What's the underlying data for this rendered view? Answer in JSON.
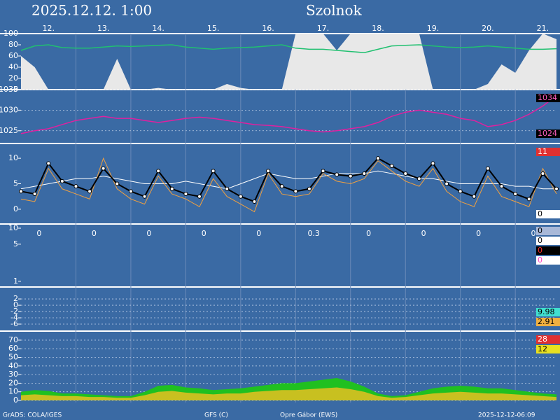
{
  "title": "2025.12.12.  1:00",
  "location": "Szolnok",
  "footer": [
    "GrADS: COLA/IGES",
    "GFS (C)",
    "Opre Gábor (EWS)",
    "2025-12-12-06:09"
  ],
  "chart_data": [
    {
      "type": "area",
      "ylim": [
        0,
        100
      ],
      "yticks": [
        0,
        20,
        40,
        60,
        80,
        100
      ],
      "grid": false,
      "categories": [
        null,
        null,
        "12.",
        null,
        null,
        null,
        "13.",
        null,
        null,
        null,
        "14.",
        null,
        null,
        null,
        "15.",
        null,
        null,
        null,
        "16.",
        null,
        null,
        null,
        "17.",
        null,
        null,
        null,
        "18.",
        null,
        null,
        null,
        "19.",
        null,
        null,
        null,
        "20.",
        null,
        null,
        null,
        "21.",
        null
      ],
      "series": [
        {
          "style": "area",
          "color": "#e8e8e8",
          "values": [
            60,
            40,
            0,
            0,
            0,
            0,
            0,
            55,
            0,
            0,
            3,
            0,
            0,
            0,
            0,
            10,
            3,
            0,
            0,
            0,
            100,
            100,
            100,
            70,
            100,
            100,
            100,
            100,
            100,
            100,
            0,
            0,
            0,
            0,
            10,
            45,
            30,
            70,
            100,
            90
          ]
        },
        {
          "style": "line",
          "color": "#20c070",
          "values": [
            70,
            78,
            80,
            75,
            74,
            74,
            76,
            78,
            77,
            78,
            79,
            80,
            76,
            74,
            72,
            74,
            75,
            76,
            78,
            80,
            74,
            72,
            72,
            70,
            68,
            66,
            72,
            78,
            79,
            80,
            78,
            76,
            75,
            76,
            78,
            76,
            74,
            72,
            72,
            73
          ]
        }
      ]
    },
    {
      "type": "line",
      "ylim": [
        1021.9,
        1035
      ],
      "yticks": [
        1025,
        1030,
        1035
      ],
      "grid": true,
      "series": [
        {
          "style": "line",
          "color": "#e020a0",
          "values": [
            1024.3,
            1025,
            1025.5,
            1026.5,
            1027.5,
            1028,
            1028.5,
            1028,
            1028,
            1027.5,
            1027,
            1027.5,
            1028,
            1028.3,
            1028,
            1027.5,
            1027,
            1026.5,
            1026.3,
            1026,
            1025.5,
            1025,
            1024.7,
            1025,
            1025.5,
            1026,
            1027,
            1028.5,
            1029.5,
            1030,
            1029.5,
            1029,
            1028,
            1027.5,
            1026,
            1026.5,
            1027.5,
            1029,
            1031,
            1033.5
          ]
        }
      ],
      "side_labels": [
        {
          "value": 1034,
          "color": "#ff60c0",
          "background": "#000000"
        },
        {
          "value": 1024,
          "color": "#ff60c0",
          "background": "#000000"
        }
      ]
    },
    {
      "type": "line",
      "ylim": [
        -2.9,
        12.9
      ],
      "yticks": [
        0,
        5,
        10
      ],
      "grid": false,
      "series": [
        {
          "style": "line",
          "color": "#ffffff",
          "width": 1,
          "values": [
            4,
            4.5,
            5,
            5.5,
            6,
            6,
            6.5,
            6,
            5.5,
            5,
            5,
            5,
            5.5,
            5,
            4.5,
            4,
            5,
            6,
            7,
            6.5,
            6,
            6,
            6.5,
            7,
            7,
            7,
            7.5,
            7,
            6.5,
            6,
            6,
            5.5,
            5,
            5,
            5,
            5,
            4.5,
            4.5,
            4,
            4
          ]
        },
        {
          "style": "line",
          "color": "#f0a040",
          "width": 1,
          "values": [
            2,
            1.5,
            8,
            4,
            3,
            2,
            10,
            4,
            2,
            1,
            6.5,
            3,
            2,
            0.5,
            6,
            2.5,
            1,
            -0.5,
            7,
            3,
            2.5,
            3,
            7,
            5.5,
            5,
            6,
            9.5,
            7.5,
            5.5,
            4.5,
            8,
            3.5,
            1.5,
            0.5,
            6.5,
            2.5,
            1.5,
            0.5,
            8,
            3
          ]
        },
        {
          "style": "line",
          "color": "#000000",
          "width": 2,
          "markers": true,
          "values": [
            3.5,
            3,
            9,
            5.5,
            4.5,
            3.5,
            8,
            5,
            3.5,
            2.5,
            7.5,
            4,
            3,
            2.5,
            7.5,
            4,
            2.5,
            1.5,
            7.5,
            4.5,
            3.5,
            4,
            7.5,
            6.8,
            6.5,
            7,
            10,
            8.5,
            7,
            6,
            9,
            5,
            3.5,
            2.5,
            8,
            4.5,
            3,
            2,
            7,
            4
          ]
        }
      ],
      "side_labels": [
        {
          "value": 11,
          "color": "#ffffff",
          "background": "#e03030"
        },
        {
          "value": 0,
          "color": "#000000",
          "background": "#ffffff"
        }
      ]
    },
    {
      "type": "line",
      "log_scale": true,
      "ylim": [
        0.83,
        12
      ],
      "yticks": [
        1,
        5,
        10
      ],
      "grid": false,
      "daily_totals": [
        0,
        0,
        0,
        0,
        0,
        0.3,
        0,
        0,
        0,
        0
      ],
      "side_labels": [
        {
          "value": 0,
          "color": "#000000",
          "background": "#a8b8d8"
        },
        {
          "value": 0,
          "color": "#000000",
          "background": "#ffffff"
        },
        {
          "value": 0,
          "color": "#ff3030",
          "background": "#000000"
        },
        {
          "value": 0,
          "color": "#ff40c0",
          "background": "#ffffff"
        }
      ]
    },
    {
      "type": "line",
      "ylim": [
        -8,
        5.8
      ],
      "yticks": [
        2,
        0,
        -2,
        -4,
        -6
      ],
      "grid": true,
      "side_labels": [
        {
          "value": "9.98",
          "color": "#000000",
          "background": "#40e0d0"
        },
        {
          "value": "2.91",
          "color": "#000000",
          "background": "#f0b040"
        }
      ]
    },
    {
      "type": "area",
      "ylim": [
        0,
        80.5
      ],
      "yticks": [
        0,
        10,
        20,
        30,
        40,
        50,
        60,
        70
      ],
      "grid": true,
      "series": [
        {
          "style": "area",
          "color": "#20c020",
          "values": [
            10,
            12,
            11,
            8,
            8,
            7,
            6,
            5,
            5,
            10,
            17,
            18,
            15,
            14,
            12,
            13,
            14,
            16,
            18,
            20,
            20,
            22,
            24,
            26,
            22,
            16,
            8,
            5,
            6,
            10,
            14,
            16,
            17,
            16,
            14,
            14,
            12,
            10,
            8,
            7
          ]
        },
        {
          "style": "area",
          "color": "#c8c020",
          "values": [
            6,
            7,
            6,
            5,
            5,
            4,
            4,
            3,
            3,
            6,
            10,
            11,
            9,
            8,
            7,
            8,
            8,
            10,
            11,
            12,
            12,
            13,
            14,
            15,
            13,
            10,
            5,
            3,
            4,
            6,
            8,
            9,
            10,
            9,
            8,
            8,
            7,
            6,
            5,
            4
          ]
        }
      ],
      "side_labels": [
        {
          "value": 28,
          "color": "#ffffff",
          "background": "#e03030"
        },
        {
          "value": 12,
          "color": "#000000",
          "background": "#e8e020"
        }
      ]
    }
  ]
}
